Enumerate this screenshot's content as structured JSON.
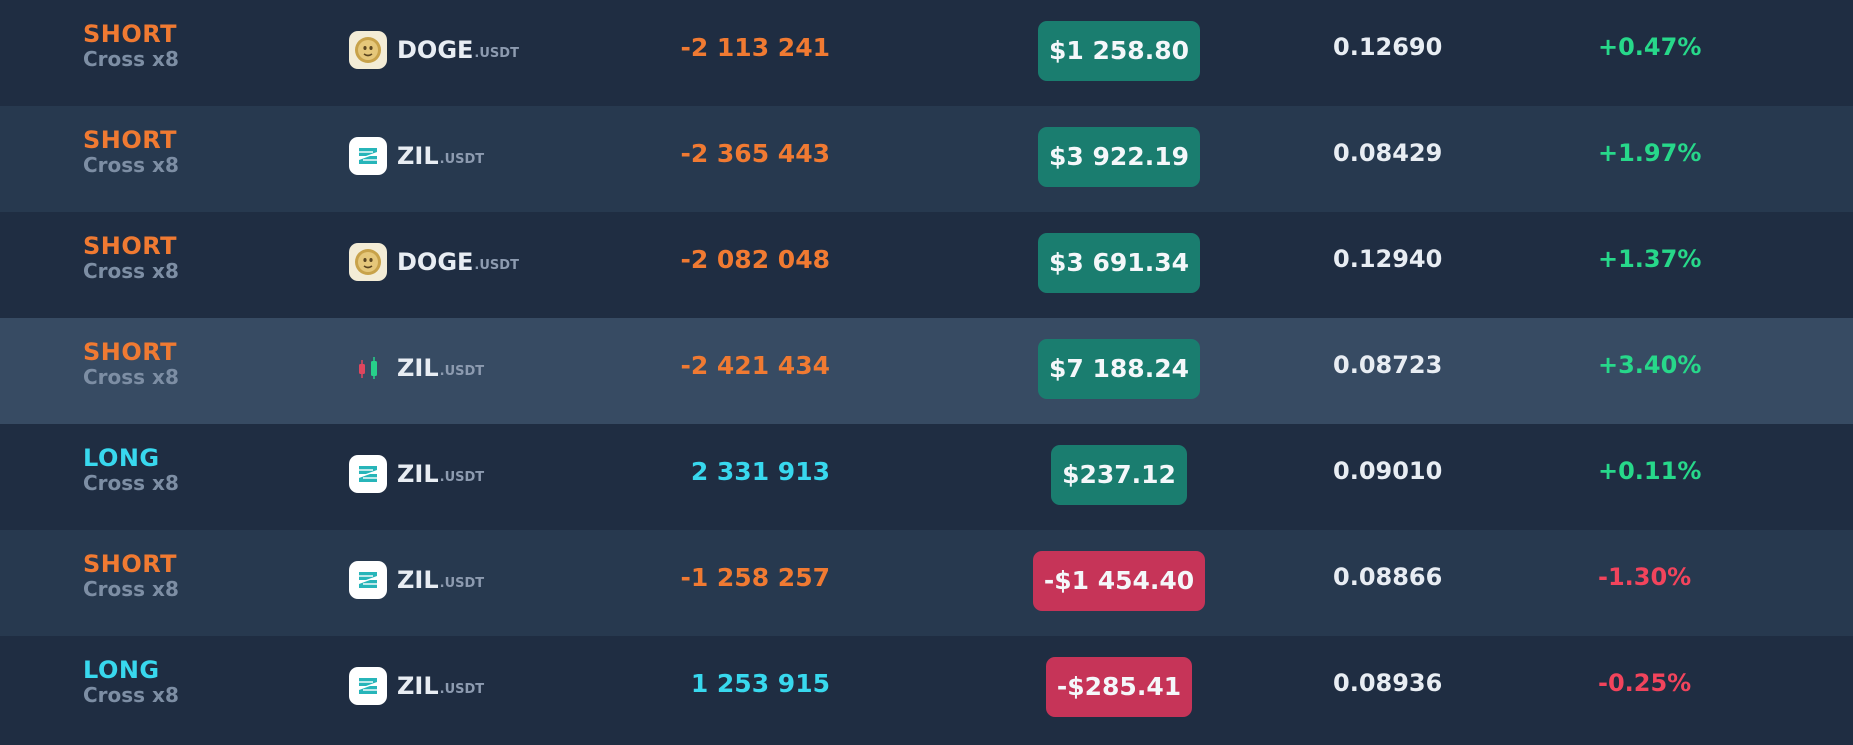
{
  "positions": [
    {
      "side": "SHORT",
      "margin": "Cross x8",
      "icon": "doge-coin-icon",
      "symbol": "DOGE",
      "quote": ".USDT",
      "size": "-2 113 241",
      "pnl": "$1 258.80",
      "pnl_sign": "pos",
      "price": "0.12690",
      "change": "+0.47%"
    },
    {
      "side": "SHORT",
      "margin": "Cross x8",
      "icon": "zil-coin-icon",
      "symbol": "ZIL",
      "quote": ".USDT",
      "size": "-2 365 443",
      "pnl": "$3 922.19",
      "pnl_sign": "pos",
      "price": "0.08429",
      "change": "+1.97%"
    },
    {
      "side": "SHORT",
      "margin": "Cross x8",
      "icon": "doge-coin-icon",
      "symbol": "DOGE",
      "quote": ".USDT",
      "size": "-2 082 048",
      "pnl": "$3 691.34",
      "pnl_sign": "pos",
      "price": "0.12940",
      "change": "+1.37%"
    },
    {
      "side": "SHORT",
      "margin": "Cross x8",
      "icon": "candlestick-chart-icon",
      "symbol": "ZIL",
      "quote": ".USDT",
      "size": "-2 421 434",
      "pnl": "$7 188.24",
      "pnl_sign": "pos",
      "price": "0.08723",
      "change": "+3.40%"
    },
    {
      "side": "LONG",
      "margin": "Cross x8",
      "icon": "zil-coin-icon",
      "symbol": "ZIL",
      "quote": ".USDT",
      "size": "2 331 913",
      "pnl": "$237.12",
      "pnl_sign": "pos",
      "price": "0.09010",
      "change": "+0.11%"
    },
    {
      "side": "SHORT",
      "margin": "Cross x8",
      "icon": "zil-coin-icon",
      "symbol": "ZIL",
      "quote": ".USDT",
      "size": "-1 258 257",
      "pnl": "-$1 454.40",
      "pnl_sign": "neg",
      "price": "0.08866",
      "change": "-1.30%"
    },
    {
      "side": "LONG",
      "margin": "Cross x8",
      "icon": "zil-coin-icon",
      "symbol": "ZIL",
      "quote": ".USDT",
      "size": "1 253 915",
      "pnl": "-$285.41",
      "pnl_sign": "neg",
      "price": "0.08936",
      "change": "-0.25%"
    }
  ],
  "colors": {
    "short": "#f07a32",
    "long": "#38d8ee",
    "profit": "#1a7d6f",
    "loss": "#c63458",
    "change_up": "#27d88a",
    "change_down": "#f2445c"
  }
}
